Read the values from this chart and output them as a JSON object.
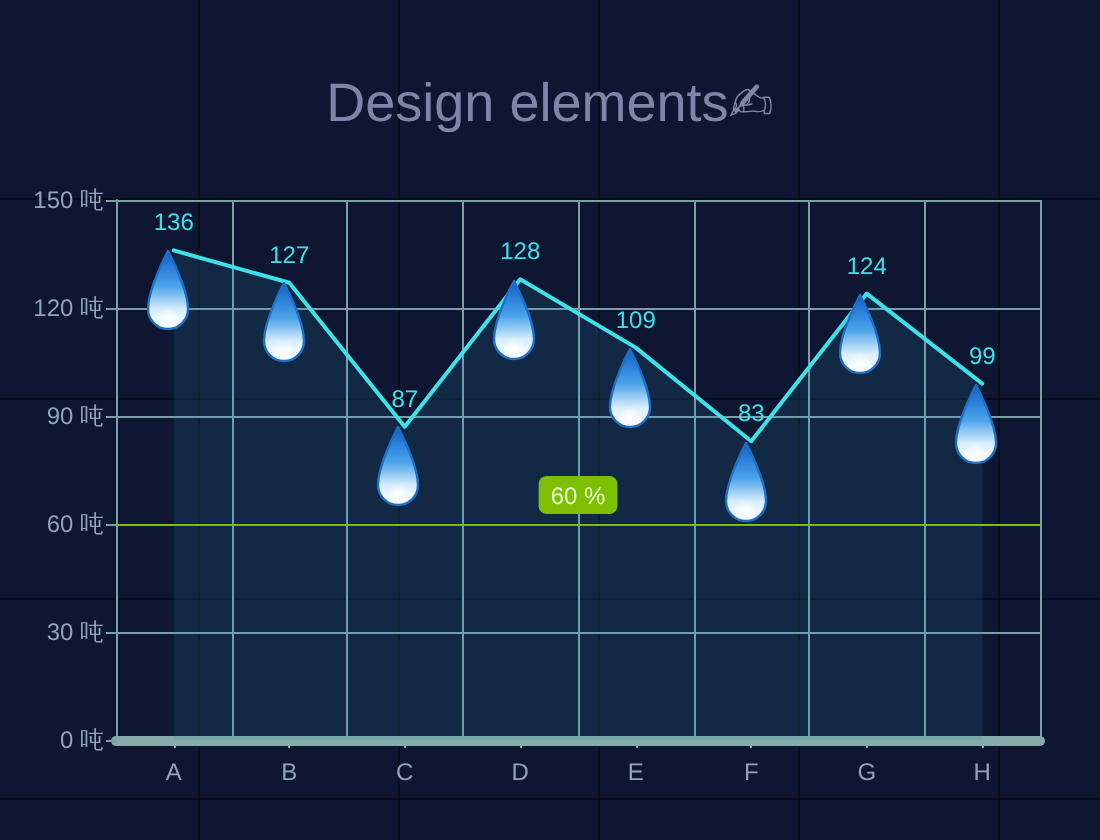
{
  "chart_data": {
    "type": "area",
    "title": "Design elements✍",
    "categories": [
      "A",
      "B",
      "C",
      "D",
      "E",
      "F",
      "G",
      "H"
    ],
    "series": [
      {
        "color": "#3de1e8",
        "values": [
          136,
          127,
          87,
          128,
          109,
          83,
          124,
          99
        ]
      }
    ],
    "ylim": [
      0,
      150
    ],
    "yticks": [
      {
        "value": 0,
        "label": "0 吨"
      },
      {
        "value": 30,
        "label": "30 吨"
      },
      {
        "value": 60,
        "label": "60 吨"
      },
      {
        "value": 90,
        "label": "90 吨"
      },
      {
        "value": 120,
        "label": "120 吨"
      },
      {
        "value": 150,
        "label": "150 吨"
      }
    ],
    "grid": true,
    "data_labels": true,
    "marker": "none",
    "ref_lines": [
      {
        "axis": "y",
        "value": 60,
        "label": "60 %",
        "color": "#7ec000"
      }
    ]
  }
}
